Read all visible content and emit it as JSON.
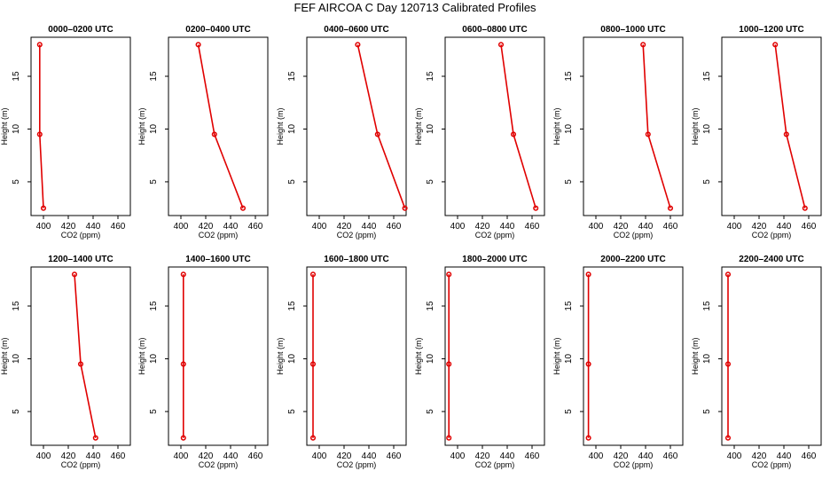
{
  "chart_data": {
    "type": "line",
    "title": "FEF AIRCOA C  Day 120713  Calibrated Profiles",
    "xlabel": "CO2 (ppm)",
    "ylabel": "Height (m)",
    "xlim": [
      390,
      470
    ],
    "ylim": [
      1.8,
      18.7
    ],
    "xticks": [
      400,
      420,
      440,
      460
    ],
    "yticks": [
      5,
      10,
      15
    ],
    "panels": [
      {
        "title": "0000–0200 UTC",
        "height": [
          18,
          9.5,
          2.5
        ],
        "co2": [
          397,
          397,
          400
        ]
      },
      {
        "title": "0200–0400 UTC",
        "height": [
          18,
          9.5,
          2.5
        ],
        "co2": [
          414,
          427,
          450
        ]
      },
      {
        "title": "0400–0600 UTC",
        "height": [
          18,
          9.5,
          2.5
        ],
        "co2": [
          431,
          447,
          469
        ]
      },
      {
        "title": "0600–0800 UTC",
        "height": [
          18,
          9.5,
          2.5
        ],
        "co2": [
          435,
          445,
          463
        ]
      },
      {
        "title": "0800–1000 UTC",
        "height": [
          18,
          9.5,
          2.5
        ],
        "co2": [
          438,
          442,
          460
        ]
      },
      {
        "title": "1000–1200 UTC",
        "height": [
          18,
          9.5,
          2.5
        ],
        "co2": [
          433,
          442,
          457
        ]
      },
      {
        "title": "1200–1400 UTC",
        "height": [
          18,
          9.5,
          2.5
        ],
        "co2": [
          425,
          430,
          442
        ]
      },
      {
        "title": "1400–1600 UTC",
        "height": [
          18,
          9.5,
          2.5
        ],
        "co2": [
          402,
          402,
          402
        ]
      },
      {
        "title": "1600–1800 UTC",
        "height": [
          18,
          9.5,
          2.5
        ],
        "co2": [
          395,
          395,
          395
        ]
      },
      {
        "title": "1800–2000 UTC",
        "height": [
          18,
          9.5,
          2.5
        ],
        "co2": [
          393,
          393,
          393
        ]
      },
      {
        "title": "2000–2200 UTC",
        "height": [
          18,
          9.5,
          2.5
        ],
        "co2": [
          394,
          394,
          394
        ]
      },
      {
        "title": "2200–2400 UTC",
        "height": [
          18,
          9.5,
          2.5
        ],
        "co2": [
          395,
          395,
          395
        ]
      }
    ]
  }
}
